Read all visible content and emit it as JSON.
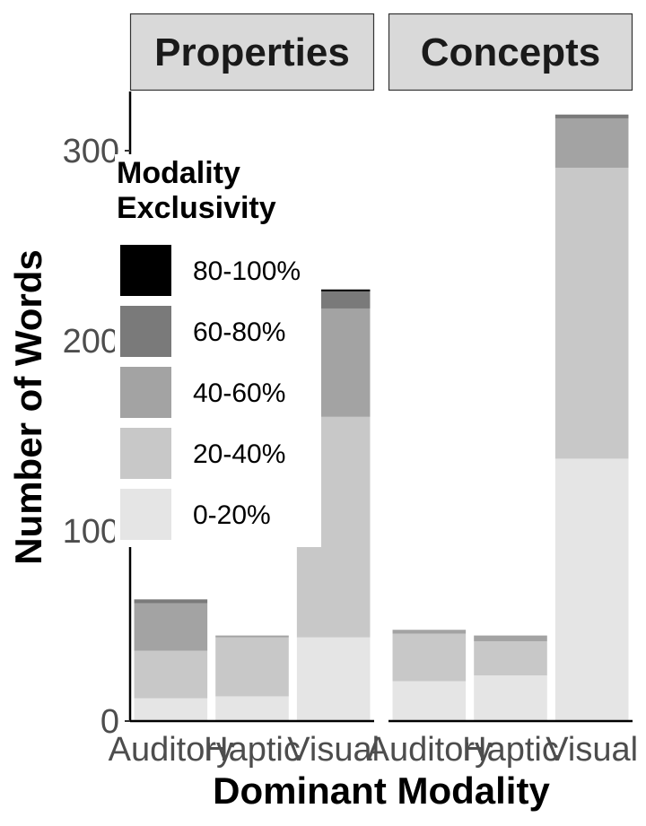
{
  "chart_data": {
    "type": "bar",
    "stacked": true,
    "xlabel": "Dominant Modality",
    "ylabel": "Number of Words",
    "ylim": [
      0,
      330
    ],
    "yticks": [
      0,
      100,
      200,
      300
    ],
    "grid": false,
    "legend": {
      "title_lines": [
        "Modality",
        "Exclusivity"
      ],
      "placement": "top-left inside",
      "entries": [
        {
          "label": "80-100%",
          "color": "#000000"
        },
        {
          "label": "60-80%",
          "color": "#7a7a7a"
        },
        {
          "label": "40-60%",
          "color": "#a3a3a3"
        },
        {
          "label": "20-40%",
          "color": "#c8c8c8"
        },
        {
          "label": "0-20%",
          "color": "#e5e5e5"
        }
      ]
    },
    "stack_order": [
      "0-20%",
      "20-40%",
      "40-60%",
      "60-80%",
      "80-100%"
    ],
    "series_colors": {
      "0-20%": "#e5e5e5",
      "20-40%": "#c8c8c8",
      "40-60%": "#a3a3a3",
      "60-80%": "#7a7a7a",
      "80-100%": "#000000"
    },
    "facets": [
      {
        "name": "Properties",
        "categories": [
          "Auditory",
          "Haptic",
          "Visual"
        ],
        "series": [
          {
            "name": "0-20%",
            "values": [
              12,
              13,
              44
            ]
          },
          {
            "name": "20-40%",
            "values": [
              25,
              31,
              116
            ]
          },
          {
            "name": "40-60%",
            "values": [
              25,
              1,
              57
            ]
          },
          {
            "name": "60-80%",
            "values": [
              2,
              0,
              9
            ]
          },
          {
            "name": "80-100%",
            "values": [
              0,
              0,
              1
            ]
          }
        ]
      },
      {
        "name": "Concepts",
        "categories": [
          "Auditory",
          "Haptic",
          "Visual"
        ],
        "series": [
          {
            "name": "0-20%",
            "values": [
              21,
              24,
              138
            ]
          },
          {
            "name": "20-40%",
            "values": [
              25,
              18,
              153
            ]
          },
          {
            "name": "40-60%",
            "values": [
              2,
              3,
              26
            ]
          },
          {
            "name": "60-80%",
            "values": [
              0,
              0,
              2
            ]
          },
          {
            "name": "80-100%",
            "values": [
              0,
              0,
              0
            ]
          }
        ]
      }
    ]
  }
}
